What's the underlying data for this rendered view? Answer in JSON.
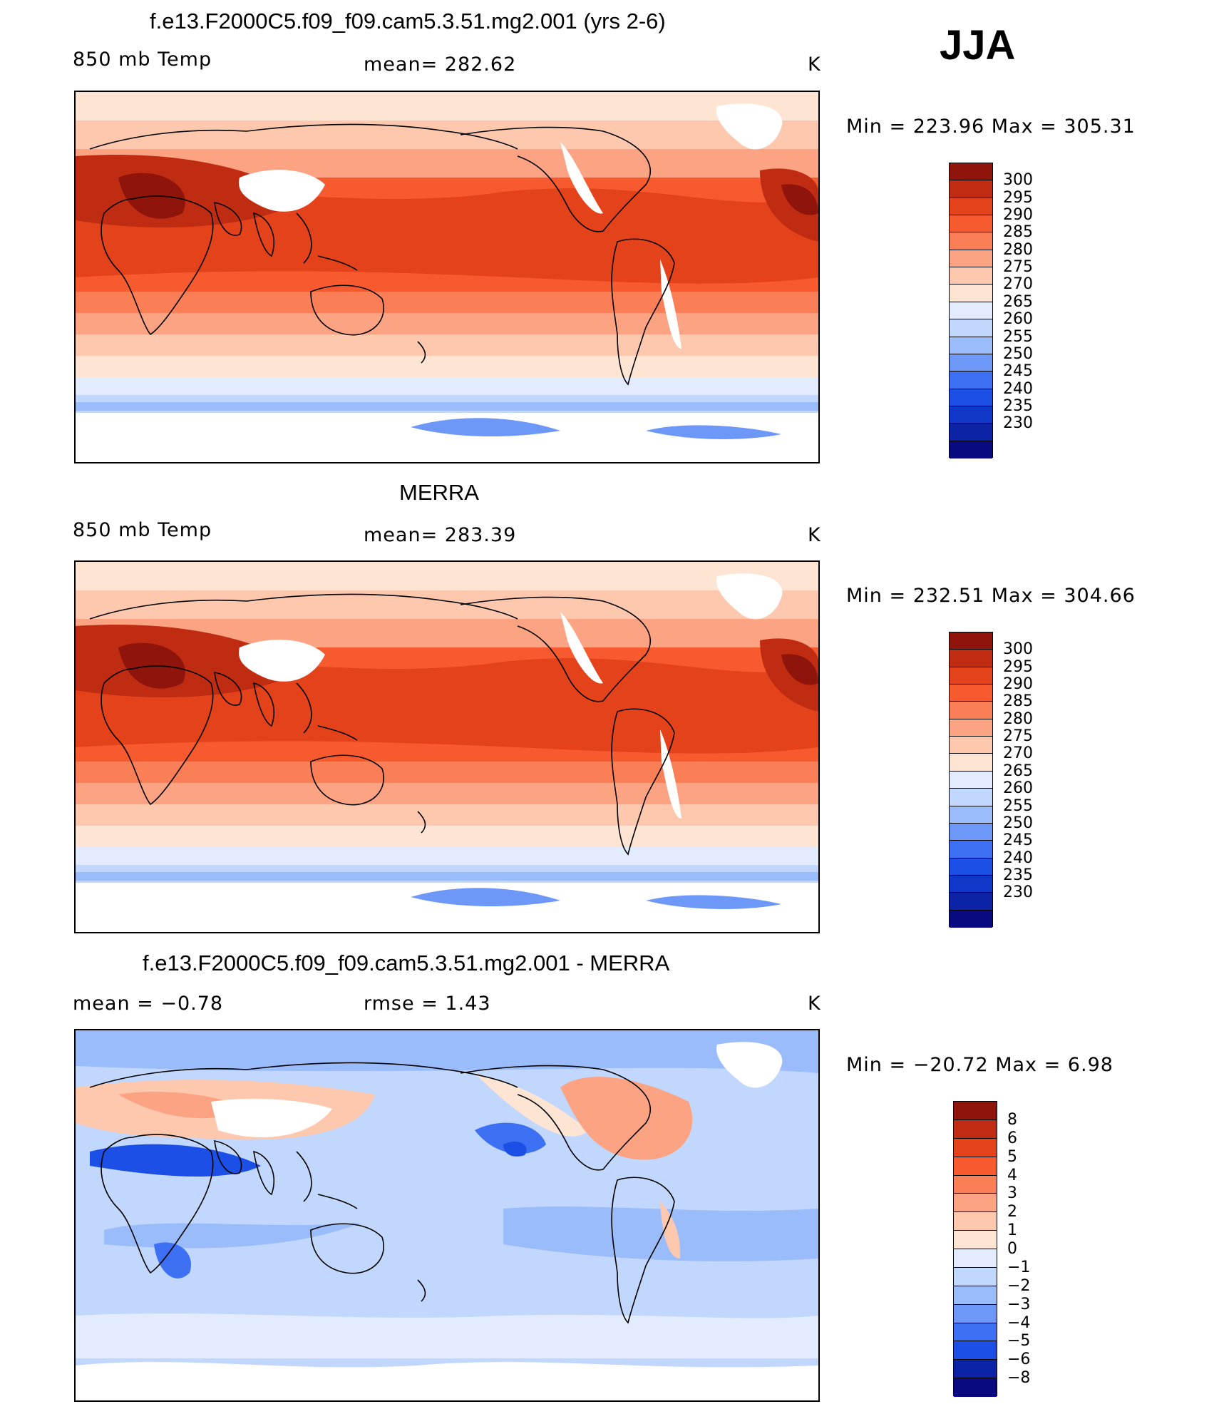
{
  "season": "JJA",
  "colors": {
    "temp_scale": [
      "#ffffff",
      "#0a0a80",
      "#0c23a6",
      "#0f37c8",
      "#1c4fe6",
      "#3d70f2",
      "#6d98f7",
      "#9bbcfb",
      "#c2d7fd",
      "#e2ecfe",
      "#fee4d3",
      "#fdc8ae",
      "#fca383",
      "#fa7e56",
      "#f65a2e",
      "#e4421a",
      "#c02c12",
      "#8f140c"
    ],
    "diff_scale": [
      "#0a0a80",
      "#0c23a6",
      "#1c4fe6",
      "#3d70f2",
      "#6d98f7",
      "#9bbcfb",
      "#c2d7fd",
      "#e2ecfe",
      "#fee4d3",
      "#fdc8ae",
      "#fca383",
      "#fa7e56",
      "#f65a2e",
      "#e4421a",
      "#c02c12",
      "#8f140c"
    ]
  },
  "panels": [
    {
      "id": "model",
      "title": "f.e13.F2000C5.f09_f09.cam5.3.51.mg2.001 (yrs 2-6)",
      "left_label": "850 mb Temp",
      "center_label": "mean=  282.62",
      "units": "K",
      "minmax": "Min  =  223.96  Max  =  305.31",
      "colorbar_labels": [
        "300",
        "295",
        "290",
        "285",
        "280",
        "275",
        "270",
        "265",
        "260",
        "255",
        "250",
        "245",
        "240",
        "235",
        "230"
      ]
    },
    {
      "id": "obs",
      "title": "MERRA",
      "left_label": "850 mb Temp",
      "center_label": "mean=  283.39",
      "units": "K",
      "minmax": "Min  =  232.51  Max  =  304.66",
      "colorbar_labels": [
        "300",
        "295",
        "290",
        "285",
        "280",
        "275",
        "270",
        "265",
        "260",
        "255",
        "250",
        "245",
        "240",
        "235",
        "230"
      ]
    },
    {
      "id": "diff",
      "title": "f.e13.F2000C5.f09_f09.cam5.3.51.mg2.001 - MERRA",
      "left_label": "mean  =    −0.78",
      "center_label": "rmse  =     1.43",
      "units": "K",
      "minmax": "Min  =  −20.72  Max  =      6.98",
      "colorbar_labels": [
        "8",
        "6",
        "5",
        "4",
        "3",
        "2",
        "1",
        "0",
        "−1",
        "−2",
        "−3",
        "−4",
        "−5",
        "−6",
        "−8"
      ]
    }
  ]
}
